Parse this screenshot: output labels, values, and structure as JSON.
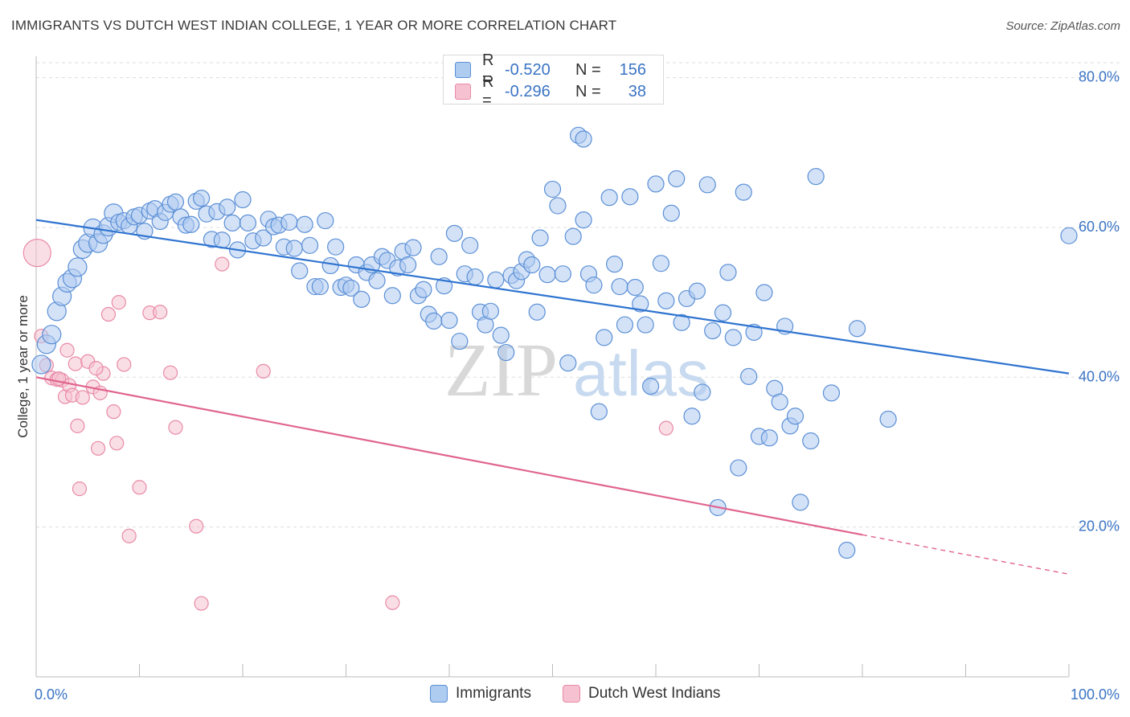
{
  "title": "IMMIGRANTS VS DUTCH WEST INDIAN COLLEGE, 1 YEAR OR MORE CORRELATION CHART",
  "source": "Source: ZipAtlas.com",
  "watermark": {
    "zip": "ZIP",
    "atlas": "atlas"
  },
  "colors": {
    "blue_fill": "#aecbf0",
    "blue_stroke": "#5b8fd6",
    "blue_line": "#2f74d0",
    "pink_fill": "#f6c2d1",
    "pink_stroke": "#e88aa6",
    "pink_line": "#e0648f",
    "tick_text": "#3b74c4",
    "grid": "#dddddd"
  },
  "legend_top": [
    {
      "r_label": "R =",
      "r_value": "-0.520",
      "n_label": "N =",
      "n_value": "156",
      "color": "blue"
    },
    {
      "r_label": "R =",
      "r_value": "-0.296",
      "n_label": "N =",
      "n_value": "38",
      "color": "pink"
    }
  ],
  "legend_bottom": [
    {
      "label": "Immigrants",
      "color": "blue"
    },
    {
      "label": "Dutch West Indians",
      "color": "pink"
    }
  ],
  "chart_data": {
    "type": "scatter",
    "title": "IMMIGRANTS VS DUTCH WEST INDIAN COLLEGE, 1 YEAR OR MORE CORRELATION CHART",
    "xlabel": "",
    "ylabel": "College, 1 year or more",
    "xlim": [
      0,
      100
    ],
    "ylim": [
      0,
      85
    ],
    "x_tick_labels": [
      {
        "value": 0,
        "label": "0.0%"
      },
      {
        "value": 100,
        "label": "100.0%"
      }
    ],
    "y_tick_labels": [
      {
        "value": 20,
        "label": "20.0%"
      },
      {
        "value": 40,
        "label": "40.0%"
      },
      {
        "value": 60,
        "label": "60.0%"
      },
      {
        "value": 80,
        "label": "80.0%"
      }
    ],
    "grid": true,
    "legend_position": "bottom",
    "series": [
      {
        "name": "Immigrants",
        "color": "blue",
        "trend": {
          "x": [
            0,
            100
          ],
          "y": [
            61.0,
            40.5
          ],
          "dashed_from": null
        },
        "points": [
          [
            0.5,
            41.7
          ],
          [
            1.0,
            44.4
          ],
          [
            1.5,
            45.7
          ],
          [
            2.0,
            48.8
          ],
          [
            2.5,
            50.8
          ],
          [
            3.0,
            52.6
          ],
          [
            3.5,
            53.2
          ],
          [
            4.0,
            54.7
          ],
          [
            4.5,
            57.1
          ],
          [
            5.0,
            57.9
          ],
          [
            5.5,
            59.9
          ],
          [
            6.0,
            57.9
          ],
          [
            6.5,
            59.1
          ],
          [
            7.0,
            60.1
          ],
          [
            7.5,
            61.9
          ],
          [
            8.0,
            60.7
          ],
          [
            8.5,
            60.9
          ],
          [
            9.0,
            60.2
          ],
          [
            9.5,
            61.4
          ],
          [
            10.0,
            61.6
          ],
          [
            10.5,
            59.5
          ],
          [
            11.0,
            62.2
          ],
          [
            11.5,
            62.5
          ],
          [
            12.0,
            60.8
          ],
          [
            12.5,
            62.0
          ],
          [
            13.0,
            63.1
          ],
          [
            13.5,
            63.4
          ],
          [
            14.0,
            61.4
          ],
          [
            14.5,
            60.3
          ],
          [
            15.0,
            60.4
          ],
          [
            15.5,
            63.5
          ],
          [
            16.0,
            63.9
          ],
          [
            16.5,
            61.8
          ],
          [
            17.0,
            58.4
          ],
          [
            17.5,
            62.1
          ],
          [
            18.0,
            58.3
          ],
          [
            18.5,
            62.7
          ],
          [
            19.0,
            60.6
          ],
          [
            19.5,
            57.0
          ],
          [
            20.0,
            63.7
          ],
          [
            20.5,
            60.6
          ],
          [
            21.0,
            58.2
          ],
          [
            22.0,
            58.6
          ],
          [
            22.5,
            61.1
          ],
          [
            23.0,
            60.1
          ],
          [
            23.5,
            60.3
          ],
          [
            24.0,
            57.4
          ],
          [
            24.5,
            60.7
          ],
          [
            25.0,
            57.2
          ],
          [
            25.5,
            54.2
          ],
          [
            26.0,
            60.4
          ],
          [
            26.5,
            57.6
          ],
          [
            27.0,
            52.1
          ],
          [
            27.5,
            52.1
          ],
          [
            28.0,
            60.9
          ],
          [
            28.5,
            54.9
          ],
          [
            29.0,
            57.4
          ],
          [
            29.5,
            52.0
          ],
          [
            30.0,
            52.3
          ],
          [
            30.5,
            51.9
          ],
          [
            31.0,
            55.0
          ],
          [
            31.5,
            50.4
          ],
          [
            32.0,
            54.0
          ],
          [
            32.5,
            55.0
          ],
          [
            33.0,
            52.9
          ],
          [
            33.5,
            56.1
          ],
          [
            34.0,
            55.6
          ],
          [
            34.5,
            50.9
          ],
          [
            35.0,
            54.6
          ],
          [
            35.5,
            56.8
          ],
          [
            36.0,
            55.0
          ],
          [
            36.5,
            57.3
          ],
          [
            37.0,
            50.9
          ],
          [
            37.5,
            51.7
          ],
          [
            38.0,
            48.4
          ],
          [
            38.5,
            47.5
          ],
          [
            39.0,
            56.1
          ],
          [
            39.5,
            52.2
          ],
          [
            40.0,
            47.6
          ],
          [
            40.5,
            59.2
          ],
          [
            41.0,
            44.8
          ],
          [
            41.5,
            53.8
          ],
          [
            42.0,
            57.6
          ],
          [
            42.5,
            53.4
          ],
          [
            43.0,
            48.7
          ],
          [
            43.5,
            47.0
          ],
          [
            44.0,
            48.8
          ],
          [
            44.5,
            53.0
          ],
          [
            45.0,
            45.6
          ],
          [
            45.5,
            43.3
          ],
          [
            46.0,
            53.6
          ],
          [
            46.5,
            52.9
          ],
          [
            47.0,
            54.1
          ],
          [
            47.5,
            55.7
          ],
          [
            48.0,
            55.0
          ],
          [
            48.5,
            48.7
          ],
          [
            48.8,
            58.6
          ],
          [
            49.5,
            53.7
          ],
          [
            50.0,
            65.1
          ],
          [
            50.5,
            62.9
          ],
          [
            51.0,
            53.8
          ],
          [
            51.5,
            41.9
          ],
          [
            52.0,
            58.8
          ],
          [
            53.0,
            61.0
          ],
          [
            53.5,
            53.8
          ],
          [
            54.0,
            52.3
          ],
          [
            54.5,
            35.4
          ],
          [
            55.0,
            45.3
          ],
          [
            55.5,
            64.0
          ],
          [
            56.0,
            55.1
          ],
          [
            56.5,
            52.1
          ],
          [
            57.0,
            47.0
          ],
          [
            57.5,
            64.1
          ],
          [
            58.0,
            52.0
          ],
          [
            58.5,
            49.8
          ],
          [
            59.0,
            47.0
          ],
          [
            59.5,
            38.8
          ],
          [
            60.0,
            65.8
          ],
          [
            60.5,
            55.2
          ],
          [
            61.0,
            50.2
          ],
          [
            61.5,
            61.9
          ],
          [
            62.0,
            66.5
          ],
          [
            62.5,
            47.3
          ],
          [
            63.0,
            50.5
          ],
          [
            63.5,
            34.8
          ],
          [
            64.0,
            51.5
          ],
          [
            64.5,
            38.0
          ],
          [
            65.0,
            65.7
          ],
          [
            65.5,
            46.2
          ],
          [
            66.0,
            22.6
          ],
          [
            66.5,
            48.6
          ],
          [
            67.0,
            54.0
          ],
          [
            67.5,
            45.3
          ],
          [
            68.0,
            27.9
          ],
          [
            68.5,
            64.7
          ],
          [
            69.0,
            40.1
          ],
          [
            69.5,
            46.0
          ],
          [
            70.0,
            32.1
          ],
          [
            70.5,
            51.3
          ],
          [
            71.0,
            31.9
          ],
          [
            71.5,
            38.5
          ],
          [
            72.0,
            36.7
          ],
          [
            72.5,
            46.8
          ],
          [
            73.0,
            33.5
          ],
          [
            73.5,
            34.8
          ],
          [
            74.0,
            23.3
          ],
          [
            75.0,
            31.5
          ],
          [
            75.5,
            66.8
          ],
          [
            77.0,
            37.9
          ],
          [
            78.5,
            16.9
          ],
          [
            79.5,
            46.5
          ],
          [
            82.5,
            34.4
          ],
          [
            100.0,
            58.9
          ],
          [
            52.5,
            72.3
          ],
          [
            53.0,
            71.8
          ]
        ]
      },
      {
        "name": "Dutch West Indians",
        "color": "pink",
        "trend": {
          "x": [
            0,
            100
          ],
          "y": [
            40.0,
            13.7
          ],
          "dashed_from": 80
        },
        "points": [
          [
            0.1,
            56.6
          ],
          [
            0.5,
            45.5
          ],
          [
            1.0,
            41.6
          ],
          [
            1.5,
            39.9
          ],
          [
            2.0,
            39.7
          ],
          [
            2.5,
            39.6
          ],
          [
            2.8,
            37.4
          ],
          [
            3.0,
            43.6
          ],
          [
            3.2,
            38.9
          ],
          [
            3.5,
            37.6
          ],
          [
            3.8,
            41.8
          ],
          [
            4.0,
            33.5
          ],
          [
            4.2,
            25.1
          ],
          [
            4.5,
            37.3
          ],
          [
            5.0,
            42.1
          ],
          [
            5.5,
            38.7
          ],
          [
            6.0,
            30.5
          ],
          [
            6.2,
            37.9
          ],
          [
            6.5,
            40.5
          ],
          [
            7.0,
            48.4
          ],
          [
            7.5,
            35.4
          ],
          [
            7.8,
            31.2
          ],
          [
            8.0,
            50.0
          ],
          [
            8.5,
            41.7
          ],
          [
            9.0,
            18.8
          ],
          [
            10.0,
            25.3
          ],
          [
            11.0,
            48.6
          ],
          [
            12.0,
            48.7
          ],
          [
            13.0,
            40.6
          ],
          [
            13.5,
            33.3
          ],
          [
            15.5,
            20.1
          ],
          [
            16.0,
            9.8
          ],
          [
            18.0,
            55.1
          ],
          [
            22.0,
            40.8
          ],
          [
            34.5,
            9.9
          ],
          [
            61.0,
            33.2
          ],
          [
            5.8,
            41.2
          ],
          [
            2.2,
            39.8
          ]
        ]
      }
    ]
  }
}
